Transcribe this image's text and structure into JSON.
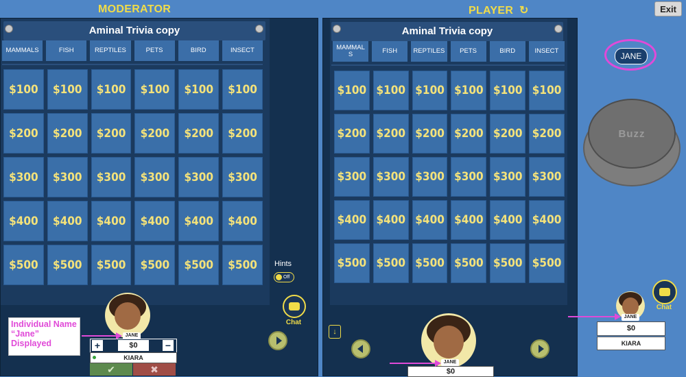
{
  "header": {
    "moderator": "MODERATOR",
    "player": "PLAYER",
    "exit": "Exit"
  },
  "board": {
    "title": "Aminal Trivia copy",
    "categories": [
      "MAMMALS",
      "FISH",
      "REPTILES",
      "PETS",
      "BIRD",
      "INSECT"
    ],
    "player_first_category": "MAMMAL\nS",
    "values": [
      "$100",
      "$200",
      "$300",
      "$400",
      "$500"
    ]
  },
  "hints": {
    "label": "Hints",
    "toggle": "Off"
  },
  "chat": {
    "label": "Chat"
  },
  "moderator_player": {
    "name_tag": "JANE",
    "score": "$0",
    "team": "KIARA",
    "plus": "+",
    "minus": "−",
    "annotation": "Individual Name “Jane” Displayed"
  },
  "player_view": {
    "name_tag": "JANE",
    "score": "$0",
    "identity_badge": "JANE",
    "buzz": "Buzz"
  },
  "side_player": {
    "name_tag": "JANE",
    "score": "$0",
    "team": "KIARA"
  },
  "colors": {
    "accent": "#f1dc48",
    "annotation": "#e04ad8",
    "tile": "#3a6fa9",
    "panel": "#14304f"
  }
}
